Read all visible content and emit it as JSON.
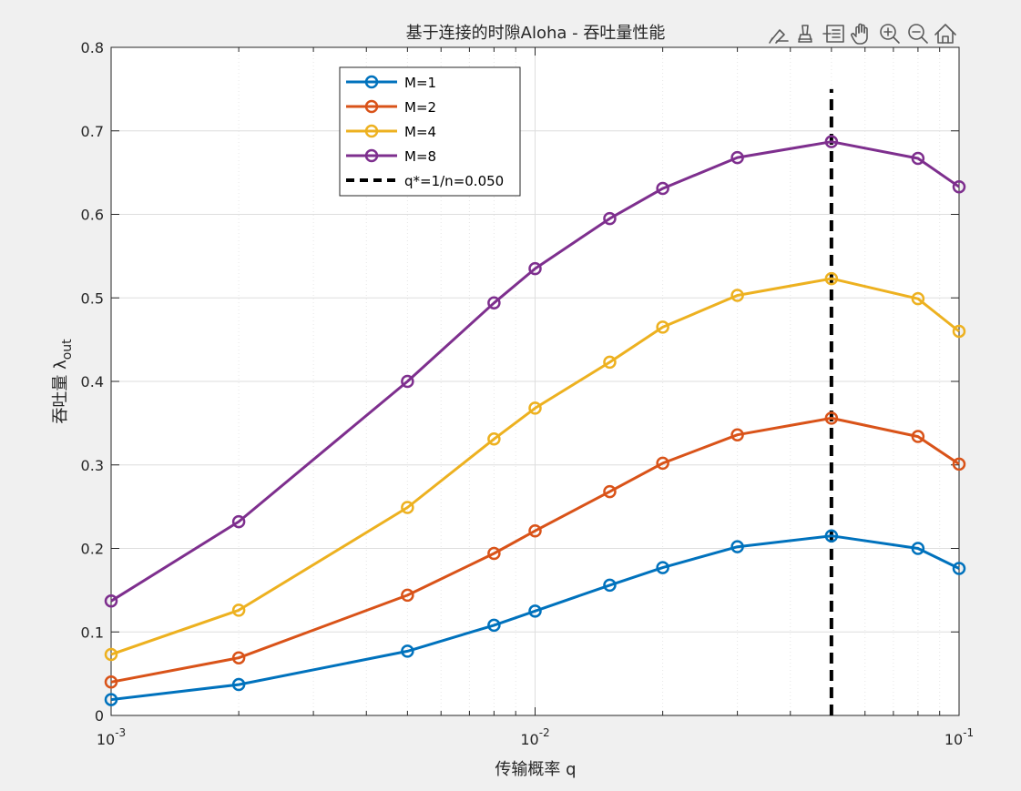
{
  "window": {
    "background": "#f0f0f0"
  },
  "toolbar": {
    "icons": [
      "brush-icon",
      "data-tips-icon",
      "data-cursor-icon",
      "pan-hand-icon",
      "zoom-in-icon",
      "zoom-out-icon",
      "home-restore-icon"
    ]
  },
  "chart_data": {
    "type": "line",
    "title": "基于连接的时隙Aloha - 吞吐量性能",
    "xlabel": "传输概率 q",
    "ylabel_main": "吞吐量 λ",
    "ylabel_sub": "out",
    "xscale": "log",
    "xlim": [
      0.001,
      0.1
    ],
    "ylim": [
      0,
      0.8
    ],
    "grid": true,
    "legend_position": "top-left",
    "x_ticks": [
      {
        "value": 0.001,
        "base": "10",
        "exp": "-3"
      },
      {
        "value": 0.01,
        "base": "10",
        "exp": "-2"
      },
      {
        "value": 0.1,
        "base": "10",
        "exp": "-1"
      }
    ],
    "y_ticks": [
      {
        "value": 0,
        "label": "0"
      },
      {
        "value": 0.1,
        "label": "0.1"
      },
      {
        "value": 0.2,
        "label": "0.2"
      },
      {
        "value": 0.3,
        "label": "0.3"
      },
      {
        "value": 0.4,
        "label": "0.4"
      },
      {
        "value": 0.5,
        "label": "0.5"
      },
      {
        "value": 0.6,
        "label": "0.6"
      },
      {
        "value": 0.7,
        "label": "0.7"
      },
      {
        "value": 0.8,
        "label": "0.8"
      }
    ],
    "x": [
      0.001,
      0.002,
      0.005,
      0.008,
      0.01,
      0.015,
      0.02,
      0.03,
      0.05,
      0.08,
      0.1
    ],
    "series": [
      {
        "name": "M=1",
        "color": "#0072bd",
        "values": [
          0.019,
          0.037,
          0.077,
          0.108,
          0.125,
          0.156,
          0.177,
          0.202,
          0.215,
          0.2,
          0.176
        ]
      },
      {
        "name": "M=2",
        "color": "#d95319",
        "values": [
          0.04,
          0.069,
          0.144,
          0.194,
          0.221,
          0.268,
          0.302,
          0.336,
          0.356,
          0.334,
          0.301
        ]
      },
      {
        "name": "M=4",
        "color": "#edb120",
        "values": [
          0.073,
          0.126,
          0.249,
          0.331,
          0.368,
          0.423,
          0.465,
          0.503,
          0.523,
          0.499,
          0.46
        ]
      },
      {
        "name": "M=8",
        "color": "#7e2f8e",
        "values": [
          0.137,
          0.232,
          0.4,
          0.494,
          0.535,
          0.595,
          0.631,
          0.668,
          0.687,
          0.667,
          0.633
        ]
      }
    ],
    "reference_line": {
      "name": "q*=1/n=0.050",
      "x": 0.05,
      "y_range": [
        0,
        0.75
      ],
      "color": "#000000",
      "style": "dashed"
    }
  }
}
